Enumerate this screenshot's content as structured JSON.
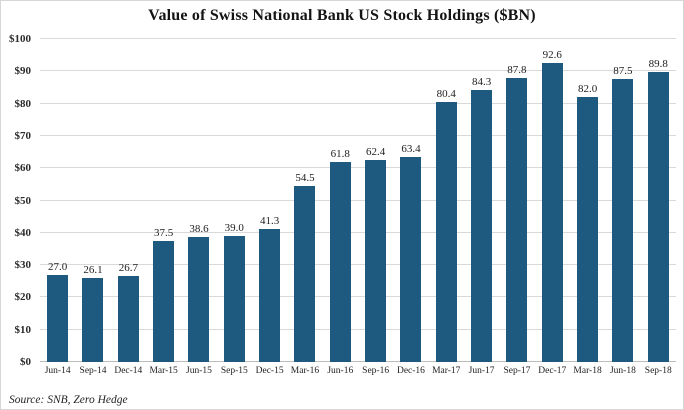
{
  "chart_data": {
    "type": "bar",
    "title": "Value of Swiss National Bank US Stock Holdings ($BN)",
    "categories": [
      "Jun-14",
      "Sep-14",
      "Dec-14",
      "Mar-15",
      "Jun-15",
      "Sep-15",
      "Dec-15",
      "Mar-16",
      "Jun-16",
      "Sep-16",
      "Dec-16",
      "Mar-17",
      "Jun-17",
      "Sep-17",
      "Dec-17",
      "Mar-18",
      "Jun-18",
      "Sep-18"
    ],
    "values": [
      27.0,
      26.1,
      26.7,
      37.5,
      38.6,
      39.0,
      41.3,
      54.5,
      61.8,
      62.4,
      63.4,
      80.4,
      84.3,
      87.8,
      92.6,
      82.0,
      87.5,
      89.8
    ],
    "ylim": [
      0,
      100
    ],
    "ytick_step": 10,
    "ytick_prefix": "$",
    "grid": true,
    "legend": false,
    "bar_color": "#1e5a80",
    "source": "Source: SNB, Zero Hedge"
  }
}
